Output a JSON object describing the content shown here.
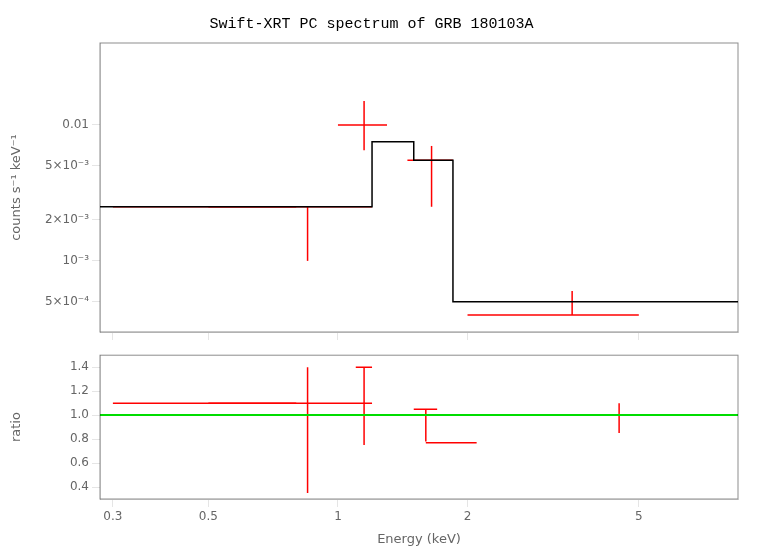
{
  "chart_data": [
    {
      "type": "errorbar",
      "title": "Swift-XRT PC spectrum of GRB 180103A",
      "ylabel": "counts s⁻¹ keV⁻¹",
      "log": true,
      "grid": false,
      "tick_labels": "y",
      "xlim": [
        0.28,
        8.5
      ],
      "ylim": [
        0.0003,
        0.04
      ],
      "xticks": [
        0.3,
        0.5,
        1,
        2,
        5
      ],
      "yticks": [
        {
          "value": 0.0005,
          "label": "5×10⁻⁴"
        },
        {
          "value": 0.001,
          "label": "10⁻³"
        },
        {
          "value": 0.002,
          "label": "2×10⁻³"
        },
        {
          "value": 0.005,
          "label": "5×10⁻³"
        },
        0.01
      ],
      "series": [
        {
          "type": "line",
          "color": "#000000",
          "x": [
            0.28,
            1.2,
            1.2,
            1.5,
            1.5,
            1.85,
            1.85,
            8.5
          ],
          "values": [
            0.0025,
            0.0025,
            0.0075,
            0.0075,
            0.0055,
            0.0055,
            0.0005,
            0.0005
          ]
        },
        {
          "type": "errorbar",
          "color": "#ff0000",
          "x": [
            0.55,
            0.85,
            1.15,
            1.65,
            3.5
          ],
          "xerr": [
            0.25,
            0.35,
            0.15,
            0.2,
            1.5
          ],
          "values": [
            0.0025,
            0.0025,
            0.01,
            0.0055,
            0.0004
          ],
          "yerr_low": [
            0,
            0.0015,
            0.0035,
            0.003,
            0
          ],
          "yerr_high": [
            0,
            0,
            0.005,
            0.0015,
            0.0002
          ]
        }
      ]
    },
    {
      "type": "errorbar",
      "xlabel": "Energy (keV)",
      "ylabel": "ratio",
      "log": "x",
      "grid": false,
      "xlim": [
        0.28,
        8.5
      ],
      "ylim": [
        0.3,
        1.5
      ],
      "xticks": [
        0.3,
        0.5,
        1,
        2,
        5
      ],
      "yticks": [
        0.4,
        0.6,
        0.8,
        {
          "value": 1,
          "label": "1.0"
        },
        1.2,
        1.4
      ],
      "reference_lines": [
        {
          "y": 1.0,
          "color": "#00dd00"
        }
      ],
      "series": [
        {
          "type": "errorbar",
          "color": "#ff0000",
          "x": [
            0.55,
            0.85,
            1.15,
            1.6,
            1.85,
            4.5
          ],
          "xerr": [
            0.25,
            0.35,
            0.05,
            0.1,
            0.25,
            0.5
          ],
          "values": [
            1.1,
            1.1,
            1.4,
            1.05,
            0.77,
            1.0
          ],
          "yerr_low": [
            0,
            0.75,
            0.65,
            0.27,
            0,
            0.15
          ],
          "yerr_high": [
            0,
            0.3,
            0,
            0,
            0,
            0.1
          ]
        }
      ]
    }
  ]
}
